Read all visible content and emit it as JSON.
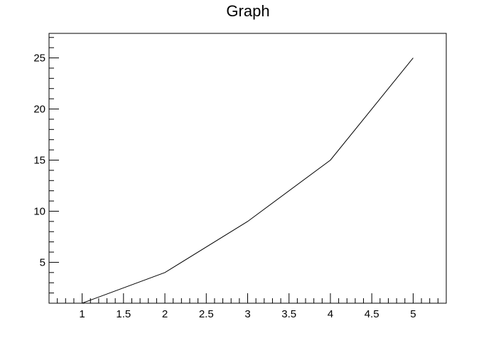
{
  "chart_data": {
    "type": "line",
    "title": "Graph",
    "xlabel": "",
    "ylabel": "",
    "x": [
      1,
      2,
      3,
      4,
      5
    ],
    "series": [
      {
        "values": [
          1,
          4,
          9,
          15,
          25
        ],
        "color": "#000000"
      }
    ],
    "xlim": [
      0.6,
      5.4
    ],
    "ylim": [
      1,
      27.4
    ],
    "x_ticks": [
      "1",
      "1.5",
      "2",
      "2.5",
      "3",
      "3.5",
      "4",
      "4.5",
      "5"
    ],
    "x_tick_values": [
      1,
      1.5,
      2,
      2.5,
      3,
      3.5,
      4,
      4.5,
      5
    ],
    "y_ticks": [
      "5",
      "10",
      "15",
      "20",
      "25"
    ],
    "y_tick_values": [
      5,
      10,
      15,
      20,
      25
    ],
    "grid": false,
    "legend": "none"
  }
}
